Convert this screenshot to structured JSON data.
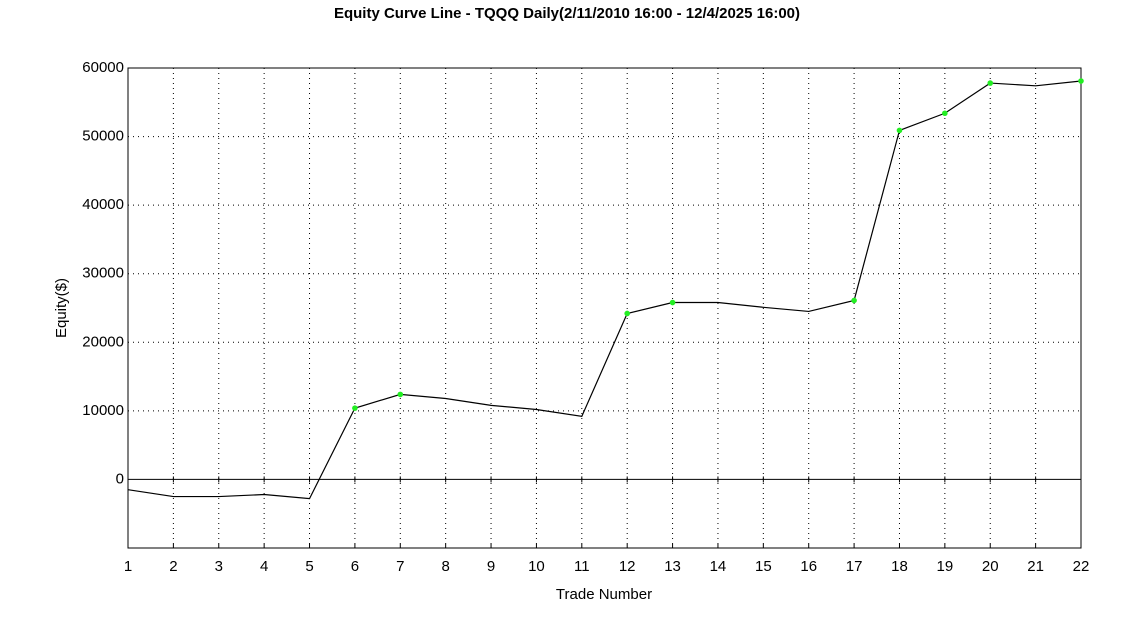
{
  "chart_data": {
    "type": "line",
    "title": "Equity Curve Line - TQQQ Daily(2/11/2010 16:00 - 12/4/2025 16:00)",
    "x_label": "Trade Number",
    "y_label": "Equity($)",
    "x": [
      1,
      2,
      3,
      4,
      5,
      6,
      7,
      8,
      9,
      10,
      11,
      12,
      13,
      14,
      15,
      16,
      17,
      18,
      19,
      20,
      21,
      22
    ],
    "series": [
      {
        "color": "#000000",
        "marker_color": "#22ee22",
        "values": [
          -1500,
          -2500,
          -2500,
          -2200,
          -2800,
          10400,
          12400,
          11800,
          10800,
          10200,
          9200,
          24200,
          25800,
          25800,
          25100,
          24500,
          26100,
          50900,
          53400,
          57800,
          57400,
          58100
        ],
        "markers": [
          false,
          false,
          false,
          false,
          false,
          true,
          true,
          false,
          false,
          false,
          false,
          true,
          true,
          false,
          false,
          false,
          true,
          true,
          true,
          true,
          false,
          true
        ]
      }
    ],
    "xlim": [
      1,
      22
    ],
    "xticks": [
      1,
      2,
      3,
      4,
      5,
      6,
      7,
      8,
      9,
      10,
      11,
      12,
      13,
      14,
      15,
      16,
      17,
      18,
      19,
      20,
      21,
      22
    ],
    "ylim": [
      -10000,
      60000
    ],
    "yticks": [
      0,
      10000,
      20000,
      30000,
      40000,
      50000,
      60000
    ],
    "grid": true
  }
}
